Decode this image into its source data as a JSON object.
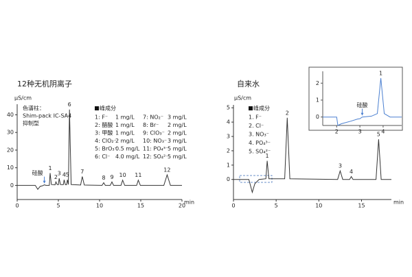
{
  "chart_data": [
    {
      "type": "line",
      "title": "12种无机阴离子",
      "y_label": "μS/cm",
      "x_label": "min",
      "color": "#333333",
      "x": [
        0,
        2.2,
        2.5,
        2.8,
        3.1,
        3.3,
        3.5,
        3.9,
        4.0,
        4.15,
        4.6,
        4.7,
        4.85,
        5.0,
        5.1,
        5.25,
        5.6,
        5.7,
        5.85,
        6.0,
        6.1,
        6.22,
        6.35,
        6.55,
        7.7,
        7.9,
        8.15,
        10.3,
        10.5,
        10.7,
        11.3,
        11.5,
        11.7,
        12.6,
        12.8,
        13.05,
        14.5,
        14.7,
        14.95,
        17.8,
        18.2,
        18.6,
        20
      ],
      "values": [
        0,
        0,
        -2.2,
        -0.5,
        -0.2,
        0.3,
        0,
        0,
        7,
        0.5,
        0.3,
        2,
        0.5,
        0.4,
        4,
        0.5,
        0.4,
        3.2,
        0.4,
        0.4,
        3.2,
        0.5,
        43,
        0.5,
        0.2,
        5,
        0.2,
        0,
        1.5,
        0,
        0,
        2,
        0,
        0,
        3,
        0,
        0,
        3,
        0,
        0,
        6,
        0,
        0
      ],
      "peak_labels": [
        null,
        null,
        null,
        null,
        null,
        null,
        null,
        null,
        "1",
        null,
        null,
        "2",
        null,
        null,
        "3",
        null,
        null,
        "4",
        null,
        null,
        "5",
        null,
        "6",
        null,
        null,
        "7",
        null,
        null,
        "8",
        null,
        null,
        "9",
        null,
        null,
        "10",
        null,
        null,
        "11",
        null,
        null,
        "12",
        null,
        null
      ],
      "annotations": [
        {
          "text": "硅酸",
          "x": 3.3,
          "y": 0.3
        }
      ],
      "xlim": [
        0,
        20
      ],
      "xticks": [
        0,
        5,
        10,
        15,
        20
      ],
      "ylim": [
        -8,
        46
      ],
      "yticks": [
        0,
        10,
        20,
        30,
        40
      ],
      "column_info": [
        "色谱柱：",
        "Shim-pack IC-SA4",
        "抑制型"
      ],
      "legend_title": "峰成分",
      "components": [
        {
          "name": "1: F⁻",
          "conc": "1 mg/L"
        },
        {
          "name": "2: 醋酸",
          "conc": "1 mg/L"
        },
        {
          "name": "3: 甲酸",
          "conc": "1 mg/L"
        },
        {
          "name": "4: ClO₂⁻",
          "conc": "2 mg/L"
        },
        {
          "name": "5: BrO₃⁻",
          "conc": "0.5 mg/L"
        },
        {
          "name": "6: Cl⁻",
          "conc": "4.0 mg/L"
        },
        {
          "name": "7: NO₂⁻",
          "conc": "3 mg/L"
        },
        {
          "name": "8: Br⁻",
          "conc": "2 mg/L"
        },
        {
          "name": "9: ClO₃⁻",
          "conc": "2 mg/L"
        },
        {
          "name": "10: NO₃⁻",
          "conc": "3 mg/L"
        },
        {
          "name": "11: PO₄³⁻",
          "conc": "5 mg/L"
        },
        {
          "name": "12: SO₄²⁻",
          "conc": "5 mg/L"
        }
      ]
    },
    {
      "type": "line",
      "title": "自来水",
      "y_label": "μS/cm",
      "x_label": "min",
      "color": "#333333",
      "x": [
        0,
        1.8,
        2.2,
        2.5,
        3.0,
        3.8,
        3.95,
        4.15,
        6.0,
        6.3,
        6.6,
        12.2,
        12.5,
        12.8,
        13.6,
        13.8,
        14.0,
        16.7,
        17.0,
        17.3,
        18.5
      ],
      "values": [
        0,
        0,
        -0.9,
        -0.3,
        0,
        0.05,
        1.3,
        0.05,
        0.05,
        4.3,
        0.05,
        0,
        0.6,
        0,
        0,
        0.2,
        0,
        0,
        2.8,
        0,
        0
      ],
      "peak_labels": [
        null,
        null,
        null,
        null,
        null,
        null,
        "1",
        null,
        null,
        "2",
        null,
        null,
        "3",
        null,
        null,
        "4",
        null,
        null,
        "5",
        null,
        null
      ],
      "xlim": [
        0,
        18.5
      ],
      "xticks": [
        0,
        5,
        10,
        15
      ],
      "ylim": [
        -1.4,
        5.2
      ],
      "yticks": [
        0,
        1,
        2,
        3,
        4,
        5
      ],
      "legend_title": "峰成分",
      "components": [
        {
          "name": "1. F⁻"
        },
        {
          "name": "2. Cl⁻"
        },
        {
          "name": "3. NO₃⁻"
        },
        {
          "name": "4. PO₄³⁻"
        },
        {
          "name": "5. SO₄²⁻"
        }
      ]
    },
    {
      "type": "line",
      "color": "#4a7fd0",
      "x": [
        1.4,
        2.0,
        2.05,
        2.2,
        2.6,
        2.9,
        3.0,
        3.1,
        3.5,
        3.75,
        3.9,
        4.05,
        4.3,
        4.8
      ],
      "values": [
        0,
        0,
        -0.5,
        -0.4,
        -0.25,
        -0.12,
        -0.1,
        0,
        0.05,
        0.2,
        2.3,
        0.2,
        0,
        0
      ],
      "peak_labels": [
        null,
        null,
        null,
        null,
        null,
        null,
        null,
        null,
        null,
        null,
        "1",
        null,
        null,
        null
      ],
      "annotations": [
        {
          "text": "硅酸",
          "x": 3.1,
          "y": 0
        }
      ],
      "xlim": [
        1.4,
        4.8
      ],
      "xticks": [
        2,
        3,
        4
      ],
      "ylim": [
        -0.5,
        2.7
      ],
      "yticks": [
        0,
        1,
        2
      ]
    }
  ]
}
